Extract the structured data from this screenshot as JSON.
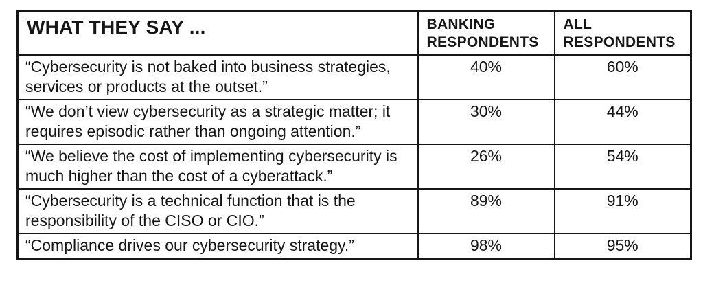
{
  "colors": {
    "background": "#ffffff",
    "border": "#161616",
    "text": "#161616"
  },
  "chart_data": {
    "type": "table",
    "title": "WHAT THEY SAY ...",
    "columns": [
      "WHAT THEY SAY ...",
      "BANKING RESPONDENTS",
      "ALL RESPONDENTS"
    ],
    "rows": [
      [
        "“Cybersecurity is not baked into business strategies, services or products at the outset.”",
        "40%",
        "60%"
      ],
      [
        "“We don’t view cybersecurity as a strategic matter; it requires episodic rather than ongoing attention.”",
        "30%",
        "44%"
      ],
      [
        "“We believe the cost of implementing cybersecurity is much higher than the cost of a cyberattack.”",
        "26%",
        "54%"
      ],
      [
        "“Cybersecurity is a technical function that is the responsibility of the CISO or CIO.”",
        "89%",
        "91%"
      ],
      [
        "“Compliance drives our cybersecurity strategy.”",
        "98%",
        "95%"
      ]
    ],
    "values_numeric": {
      "banking_respondents": [
        40,
        30,
        26,
        89,
        98
      ],
      "all_respondents": [
        60,
        44,
        54,
        91,
        95
      ]
    }
  },
  "table": {
    "header": {
      "col1": "WHAT THEY SAY ...",
      "col2": "BANKING RESPONDENTS",
      "col3": "ALL RESPONDENTS"
    },
    "rows": [
      {
        "quote": "“Cybersecurity is not baked into business strategies, services or products at the outset.”",
        "banking": "40%",
        "all": "60%"
      },
      {
        "quote": "“We don’t view cybersecurity as a strategic matter; it requires episodic rather than ongoing attention.”",
        "banking": "30%",
        "all": "44%"
      },
      {
        "quote": "“We believe the cost of implementing cybersecurity is much higher than the cost of a cyberattack.”",
        "banking": "26%",
        "all": "54%"
      },
      {
        "quote": "“Cybersecurity is a technical function that is the responsibility of the CISO or CIO.”",
        "banking": "89%",
        "all": "91%"
      },
      {
        "quote": "“Compliance drives our cybersecurity strategy.”",
        "banking": "98%",
        "all": "95%"
      }
    ]
  }
}
